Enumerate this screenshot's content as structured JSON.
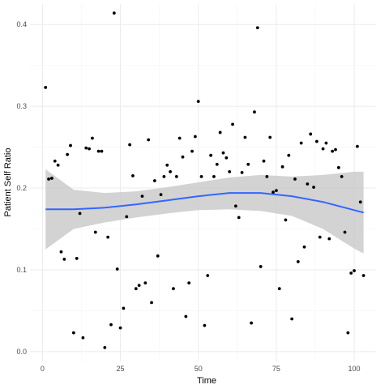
{
  "chart_data": {
    "type": "scatter",
    "xlabel": "Time",
    "ylabel": "Patient Self Ratio",
    "xlim": [
      -4,
      107
    ],
    "ylim": [
      -0.012,
      0.425
    ],
    "x_ticks": [
      0,
      25,
      50,
      75,
      100
    ],
    "y_ticks": [
      0.0,
      0.1,
      0.2,
      0.3,
      0.4
    ],
    "x_tick_labels": [
      "0",
      "25",
      "50",
      "75",
      "100"
    ],
    "y_tick_labels": [
      "0.0",
      "0.1",
      "0.2",
      "0.3",
      "0.4"
    ],
    "grid": true,
    "legend": "none",
    "colors": {
      "points": "#000000",
      "smooth_line": "#3366FF",
      "confidence_band": "#C8C8C8",
      "grid_major": "#EBEBEB",
      "grid_minor": "#F5F5F5"
    },
    "points": [
      [
        1,
        0.323
      ],
      [
        2,
        0.211
      ],
      [
        3,
        0.212
      ],
      [
        4,
        0.233
      ],
      [
        5,
        0.228
      ],
      [
        6,
        0.122
      ],
      [
        7,
        0.113
      ],
      [
        8,
        0.241
      ],
      [
        9,
        0.252
      ],
      [
        10,
        0.023
      ],
      [
        11,
        0.114
      ],
      [
        12,
        0.169
      ],
      [
        13,
        0.017
      ],
      [
        14,
        0.249
      ],
      [
        15,
        0.248
      ],
      [
        16,
        0.261
      ],
      [
        17,
        0.146
      ],
      [
        18,
        0.245
      ],
      [
        19,
        0.245
      ],
      [
        20,
        0.005
      ],
      [
        21,
        0.14
      ],
      [
        22,
        0.033
      ],
      [
        23,
        0.414
      ],
      [
        24,
        0.101
      ],
      [
        25,
        0.029
      ],
      [
        26,
        0.053
      ],
      [
        27,
        0.165
      ],
      [
        28,
        0.253
      ],
      [
        29,
        0.215
      ],
      [
        30,
        0.077
      ],
      [
        31,
        0.081
      ],
      [
        32,
        0.19
      ],
      [
        33,
        0.084
      ],
      [
        34,
        0.259
      ],
      [
        35,
        0.06
      ],
      [
        36,
        0.209
      ],
      [
        37,
        0.117
      ],
      [
        38,
        0.192
      ],
      [
        39,
        0.214
      ],
      [
        40,
        0.228
      ],
      [
        41,
        0.22
      ],
      [
        42,
        0.077
      ],
      [
        43,
        0.214
      ],
      [
        44,
        0.261
      ],
      [
        45,
        0.238
      ],
      [
        46,
        0.043
      ],
      [
        47,
        0.084
      ],
      [
        48,
        0.245
      ],
      [
        49,
        0.263
      ],
      [
        50,
        0.306
      ],
      [
        51,
        0.214
      ],
      [
        52,
        0.032
      ],
      [
        53,
        0.093
      ],
      [
        54,
        0.24
      ],
      [
        55,
        0.214
      ],
      [
        56,
        0.229
      ],
      [
        57,
        0.268
      ],
      [
        58,
        0.243
      ],
      [
        59,
        0.237
      ],
      [
        60,
        0.22
      ],
      [
        61,
        0.278
      ],
      [
        62,
        0.178
      ],
      [
        63,
        0.164
      ],
      [
        64,
        0.219
      ],
      [
        65,
        0.262
      ],
      [
        66,
        0.229
      ],
      [
        67,
        0.035
      ],
      [
        68,
        0.293
      ],
      [
        69,
        0.396
      ],
      [
        70,
        0.104
      ],
      [
        71,
        0.233
      ],
      [
        72,
        0.214
      ],
      [
        73,
        0.262
      ],
      [
        74,
        0.195
      ],
      [
        75,
        0.197
      ],
      [
        76,
        0.077
      ],
      [
        77,
        0.226
      ],
      [
        78,
        0.161
      ],
      [
        79,
        0.24
      ],
      [
        80,
        0.04
      ],
      [
        81,
        0.211
      ],
      [
        82,
        0.11
      ],
      [
        83,
        0.255
      ],
      [
        84,
        0.128
      ],
      [
        85,
        0.205
      ],
      [
        86,
        0.266
      ],
      [
        87,
        0.201
      ],
      [
        88,
        0.257
      ],
      [
        89,
        0.14
      ],
      [
        90,
        0.248
      ],
      [
        91,
        0.255
      ],
      [
        92,
        0.138
      ],
      [
        93,
        0.245
      ],
      [
        94,
        0.247
      ],
      [
        95,
        0.225
      ],
      [
        96,
        0.214
      ],
      [
        97,
        0.146
      ],
      [
        98,
        0.023
      ],
      [
        99,
        0.096
      ],
      [
        100,
        0.099
      ],
      [
        101,
        0.251
      ],
      [
        102,
        0.183
      ],
      [
        103,
        0.093
      ]
    ],
    "smooth": {
      "method": "loess",
      "x": [
        1,
        10,
        20,
        30,
        40,
        50,
        60,
        70,
        80,
        90,
        100,
        103
      ],
      "y": [
        0.174,
        0.174,
        0.176,
        0.18,
        0.185,
        0.19,
        0.194,
        0.194,
        0.19,
        0.183,
        0.173,
        0.17
      ],
      "lower": [
        0.125,
        0.15,
        0.158,
        0.164,
        0.169,
        0.173,
        0.174,
        0.172,
        0.166,
        0.15,
        0.126,
        0.12
      ],
      "upper": [
        0.223,
        0.198,
        0.194,
        0.196,
        0.201,
        0.207,
        0.213,
        0.216,
        0.214,
        0.216,
        0.22,
        0.22
      ]
    }
  }
}
